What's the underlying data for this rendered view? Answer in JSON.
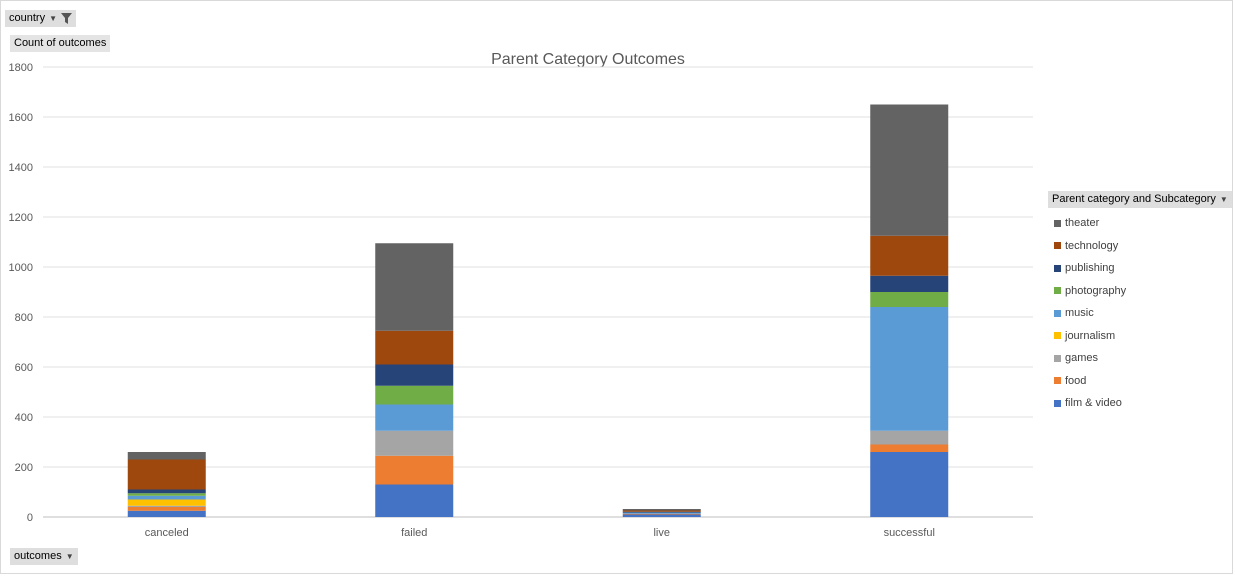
{
  "filters": {
    "country_label": "country",
    "value_field_label": "Count of outcomes",
    "axis_field_label": "outcomes",
    "legend_field_label": "Parent category and Subcategory"
  },
  "chart_data": {
    "type": "bar",
    "stacked": true,
    "title": "Parent Category Outcomes",
    "xlabel": "",
    "ylabel": "",
    "ylim": [
      0,
      1800
    ],
    "yticks": [
      0,
      200,
      400,
      600,
      800,
      1000,
      1200,
      1400,
      1600,
      1800
    ],
    "grid": true,
    "legend_position": "right",
    "categories": [
      "canceled",
      "failed",
      "live",
      "successful"
    ],
    "series": [
      {
        "name": "film & video",
        "color": "#4472c4",
        "values": [
          25,
          130,
          10,
          260
        ]
      },
      {
        "name": "food",
        "color": "#ed7d31",
        "values": [
          15,
          115,
          3,
          30
        ]
      },
      {
        "name": "games",
        "color": "#a5a5a5",
        "values": [
          5,
          100,
          0,
          55
        ]
      },
      {
        "name": "journalism",
        "color": "#ffc000",
        "values": [
          25,
          0,
          0,
          0
        ]
      },
      {
        "name": "music",
        "color": "#5b9bd5",
        "values": [
          15,
          105,
          5,
          495
        ]
      },
      {
        "name": "photography",
        "color": "#70ad47",
        "values": [
          10,
          75,
          0,
          60
        ]
      },
      {
        "name": "publishing",
        "color": "#264478",
        "values": [
          15,
          85,
          3,
          65
        ]
      },
      {
        "name": "technology",
        "color": "#9e480e",
        "values": [
          120,
          135,
          5,
          160
        ]
      },
      {
        "name": "theater",
        "color": "#636363",
        "values": [
          30,
          350,
          6,
          525
        ]
      }
    ],
    "legend_order": [
      "theater",
      "technology",
      "publishing",
      "photography",
      "music",
      "journalism",
      "games",
      "food",
      "film & video"
    ]
  }
}
